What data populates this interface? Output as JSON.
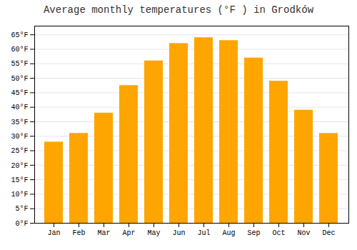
{
  "chart_data": {
    "type": "bar",
    "title": "Average monthly temperatures (°F ) in Grodków",
    "categories": [
      "Jan",
      "Feb",
      "Mar",
      "Apr",
      "May",
      "Jun",
      "Jul",
      "Aug",
      "Sep",
      "Oct",
      "Nov",
      "Dec"
    ],
    "values": [
      28,
      31,
      38,
      47.5,
      56,
      62,
      64,
      63,
      57,
      49,
      39,
      31
    ],
    "color": "#FFA500",
    "ylim": [
      0,
      68
    ],
    "yticks": [
      {
        "value": 0,
        "label": "0°F"
      },
      {
        "value": 5,
        "label": "5°F"
      },
      {
        "value": 10,
        "label": "10°F"
      },
      {
        "value": 15,
        "label": "15°F"
      },
      {
        "value": 20,
        "label": "20°F"
      },
      {
        "value": 25,
        "label": "25°F"
      },
      {
        "value": 30,
        "label": "30°F"
      },
      {
        "value": 35,
        "label": "35°F"
      },
      {
        "value": 40,
        "label": "40°F"
      },
      {
        "value": 45,
        "label": "45°F"
      },
      {
        "value": 50,
        "label": "50°F"
      },
      {
        "value": 55,
        "label": "55°F"
      },
      {
        "value": 60,
        "label": "60°F"
      },
      {
        "value": 65,
        "label": "65°F"
      }
    ],
    "grid": true
  }
}
